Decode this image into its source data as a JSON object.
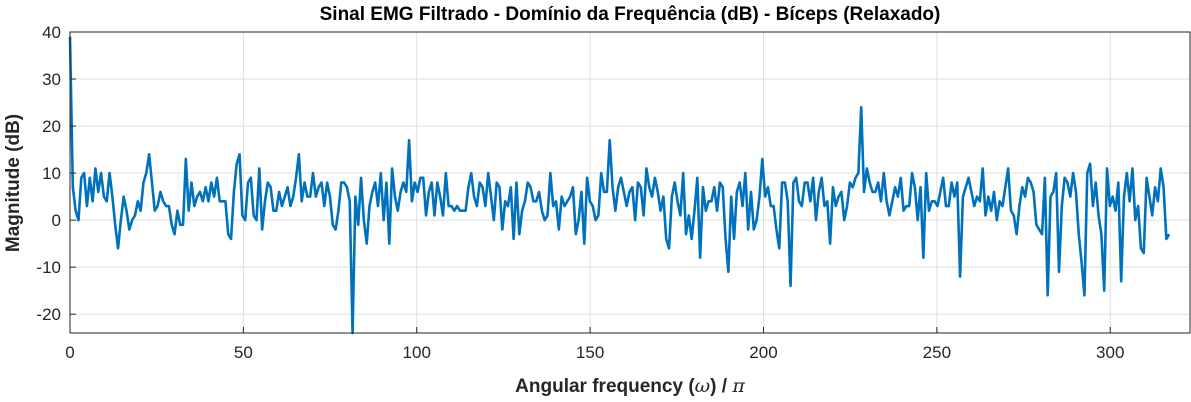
{
  "chart_data": {
    "type": "line",
    "title": "Sinal EMG Filtrado - Domínio da Frequência (dB) - Bíceps (Relaxado)",
    "xlabel_prefix": "Angular frequency (",
    "xlabel_symbol": "ω",
    "xlabel_mid": ") / ",
    "xlabel_pi": "π",
    "ylabel": "Magnitude (dB)",
    "xlim": [
      0,
      323
    ],
    "ylim": [
      -24,
      40
    ],
    "xticks": [
      0,
      50,
      100,
      150,
      200,
      250,
      300
    ],
    "yticks": [
      -20,
      -10,
      0,
      10,
      20,
      30,
      40
    ],
    "grid": true,
    "line_color": "#0072BD",
    "x_step": 1,
    "y": [
      39,
      7,
      2,
      0,
      9,
      10,
      3,
      9,
      4,
      11,
      6,
      10,
      5,
      4,
      10,
      5,
      -1,
      -6,
      0,
      5,
      2,
      -2,
      0,
      1,
      4,
      2,
      8,
      10,
      14,
      8,
      2,
      3,
      6,
      4,
      3,
      3,
      -1,
      -3,
      2,
      -1,
      -1,
      13,
      2,
      8,
      3,
      5,
      6,
      4,
      7,
      4,
      8,
      5,
      9,
      4,
      4,
      4,
      -3,
      -4,
      6,
      12,
      14,
      1,
      0,
      8,
      9,
      1,
      0,
      11,
      -2,
      4,
      8,
      7,
      2,
      2,
      6,
      3,
      5,
      7,
      3,
      5,
      9,
      14,
      4,
      8,
      5,
      5,
      10,
      5,
      7,
      8,
      3,
      8,
      5,
      -1,
      -2,
      2,
      8,
      8,
      7,
      4,
      -24,
      5,
      -1,
      9,
      0,
      -5,
      3,
      6,
      8,
      3,
      10,
      0,
      8,
      -5,
      11,
      5,
      2,
      6,
      8,
      6,
      17,
      4,
      8,
      6,
      9,
      9,
      1,
      6,
      8,
      1,
      8,
      5,
      1,
      10,
      3,
      3,
      2,
      3,
      2,
      2,
      2,
      7,
      10,
      5,
      3,
      8,
      7,
      3,
      10,
      5,
      0,
      8,
      7,
      -2,
      4,
      3,
      7,
      -4,
      8,
      -3,
      2,
      4,
      8,
      7,
      4,
      4,
      6,
      2,
      0,
      1,
      10,
      3,
      4,
      -2,
      5,
      3,
      4,
      5,
      7,
      -3,
      0,
      6,
      -5,
      9,
      4,
      3,
      0,
      1,
      10,
      6,
      6,
      17,
      7,
      2,
      7,
      9,
      6,
      3,
      6,
      7,
      0,
      8,
      7,
      1,
      11,
      7,
      5,
      9,
      6,
      2,
      5,
      -4,
      -6,
      5,
      8,
      4,
      1,
      10,
      -3,
      1,
      -4,
      2,
      9,
      -8,
      7,
      2,
      4,
      4,
      7,
      2,
      8,
      7,
      -4,
      -11,
      5,
      -4,
      6,
      8,
      3,
      10,
      -2,
      6,
      -2,
      0,
      5,
      13,
      5,
      7,
      3,
      3,
      -2,
      -6,
      8,
      8,
      4,
      -14,
      8,
      9,
      4,
      3,
      8,
      8,
      4,
      9,
      0,
      6,
      9,
      3,
      4,
      -5,
      7,
      3,
      5,
      6,
      0,
      3,
      8,
      7,
      9,
      10,
      24,
      6,
      11,
      8,
      6,
      6,
      8,
      4,
      10,
      4,
      1,
      4,
      7,
      5,
      9,
      2,
      3,
      3,
      10,
      7,
      0,
      7,
      -8,
      10,
      2,
      4,
      4,
      3,
      6,
      9,
      3,
      3,
      8,
      5,
      8,
      -12,
      5,
      7,
      9,
      6,
      3,
      5,
      4,
      11,
      1,
      5,
      2,
      6,
      0,
      4,
      3,
      7,
      11,
      2,
      1,
      -3,
      3,
      7,
      5,
      9,
      8,
      6,
      -1,
      -2,
      -3,
      9,
      -16,
      5,
      6,
      10,
      -11,
      3,
      9,
      8,
      5,
      10,
      6,
      -3,
      -9,
      -16,
      10,
      12,
      3,
      8,
      1,
      -3,
      -15,
      11,
      3,
      5,
      2,
      8,
      -13,
      5,
      10,
      4,
      11,
      0,
      3,
      -6,
      -7,
      9,
      5,
      1,
      7,
      4,
      11,
      7,
      -4,
      -3
    ]
  }
}
